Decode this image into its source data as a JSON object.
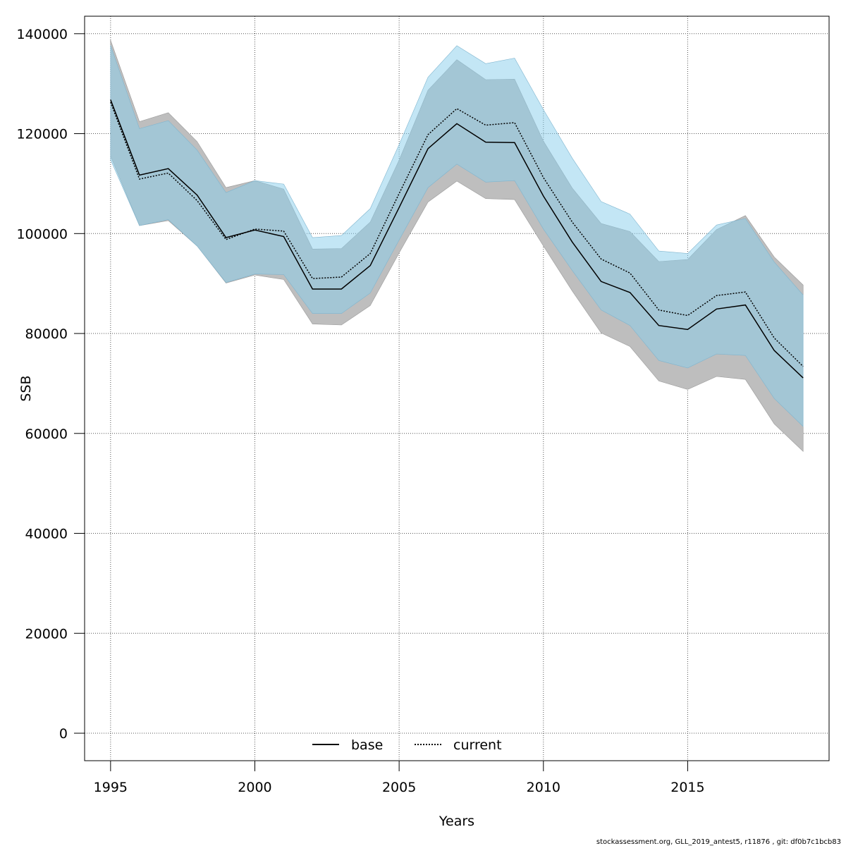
{
  "chart_data": {
    "type": "line",
    "title": "",
    "xlabel": "Years",
    "ylabel": "SSB",
    "xlim": [
      1994.1,
      2019.9
    ],
    "ylim": [
      -5500,
      143500
    ],
    "x_ticks": [
      1995,
      2000,
      2005,
      2010,
      2015
    ],
    "y_ticks": [
      0,
      20000,
      40000,
      60000,
      80000,
      100000,
      120000,
      140000
    ],
    "grid": true,
    "legend_position": "bottom",
    "x": [
      1995,
      1996,
      1997,
      1998,
      1999,
      2000,
      2001,
      2002,
      2003,
      2004,
      2005,
      2006,
      2007,
      2008,
      2009,
      2010,
      2011,
      2012,
      2013,
      2014,
      2015,
      2016,
      2017,
      2018,
      2019
    ],
    "series": [
      {
        "name": "base",
        "line_style": "solid",
        "line_color": "#000000",
        "band_color": "#bebebe",
        "values": [
          126800,
          111700,
          113000,
          107700,
          99200,
          100700,
          99400,
          88900,
          88900,
          93600,
          105200,
          117000,
          122000,
          118300,
          118200,
          107500,
          98300,
          90400,
          88200,
          81600,
          80800,
          84900,
          85700,
          76600,
          71100
        ],
        "lower": [
          115500,
          101600,
          102600,
          97500,
          90100,
          91700,
          90800,
          81900,
          81700,
          85600,
          96100,
          106300,
          110500,
          107000,
          106800,
          97500,
          88500,
          80100,
          77400,
          70500,
          68800,
          71400,
          70800,
          61900,
          56400
        ],
        "upper": [
          138700,
          122400,
          124200,
          118400,
          109200,
          110600,
          108900,
          96900,
          97000,
          102300,
          114700,
          128700,
          134800,
          130800,
          130900,
          118500,
          109100,
          102000,
          100400,
          94400,
          94800,
          100800,
          103600,
          95300,
          89700
        ]
      },
      {
        "name": "current",
        "line_style": "dotted",
        "line_color": "#000000",
        "band_color": "#87ceeb",
        "values": [
          126300,
          110900,
          112100,
          106600,
          98800,
          100900,
          100500,
          91000,
          91300,
          96000,
          108000,
          119800,
          125000,
          121700,
          122200,
          111200,
          102300,
          94900,
          92100,
          84700,
          83600,
          87600,
          88300,
          79100,
          73400
        ],
        "lower": [
          114800,
          101600,
          102800,
          97500,
          90200,
          91900,
          91800,
          84000,
          84000,
          88100,
          98700,
          109200,
          113900,
          110300,
          110600,
          100900,
          92600,
          84700,
          81600,
          74600,
          73100,
          75900,
          75600,
          67000,
          61400
        ],
        "upper": [
          137700,
          121000,
          122600,
          116700,
          108200,
          110600,
          109900,
          99200,
          99600,
          105000,
          117800,
          131300,
          137600,
          134000,
          135100,
          124800,
          115100,
          106400,
          103900,
          96500,
          96000,
          101700,
          103000,
          94300,
          87700
        ]
      }
    ],
    "footer": "stockassessment.org, GLL_2019_antest5, r11876 , git: df0b7c1bcb83"
  }
}
